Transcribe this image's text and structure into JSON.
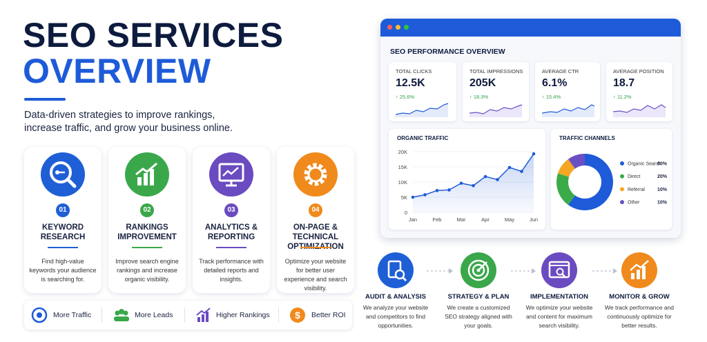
{
  "header": {
    "title_line1": "SEO SERVICES",
    "title_line2": "OVERVIEW",
    "subtitle": "Data-driven strategies to improve rankings, increase traffic, and grow your business online."
  },
  "services": [
    {
      "number": "01",
      "title": "KEYWORD RESEARCH",
      "description": "Find high-value keywords your audience is searching for."
    },
    {
      "number": "02",
      "title": "RANKINGS IMPROVEMENT",
      "description": "Improve search engine rankings and increase organic visibility."
    },
    {
      "number": "03",
      "title": "ANALYTICS & REPORTING",
      "description": "Track performance with detailed reports and insights."
    },
    {
      "number": "04",
      "title": "ON-PAGE & TECHNICAL OPTIMIZATION",
      "description": "Optimize your website for better user experience and search visibility."
    }
  ],
  "benefits": [
    "More Traffic",
    "More Leads",
    "Higher Rankings",
    "Better ROI"
  ],
  "dashboard": {
    "title": "SEO PERFORMANCE OVERVIEW",
    "kpis": [
      {
        "label": "TOTAL CLICKS",
        "value": "12.5K",
        "change": "25.6%"
      },
      {
        "label": "TOTAL IMPRESSIONS",
        "value": "205K",
        "change": "18.3%"
      },
      {
        "label": "AVERAGE CTR",
        "value": "6.1%",
        "change": "15.4%"
      },
      {
        "label": "AVERAGE POSITION",
        "value": "18.7",
        "change": "11.2%"
      }
    ]
  },
  "chart_data": [
    {
      "type": "line",
      "title": "ORGANIC TRAFFIC",
      "categories": [
        "Jan",
        null,
        "Feb",
        null,
        "Mar",
        null,
        "Apr",
        null,
        "May",
        null,
        "Jun"
      ],
      "values": [
        5000,
        5800,
        7200,
        7400,
        9600,
        8800,
        11800,
        10800,
        14800,
        13500,
        19300
      ],
      "color": "#1e5bd8",
      "ylim": [
        0,
        20000
      ],
      "yticks": [
        0,
        {
          "value": 5000,
          "label": "5K"
        },
        {
          "value": 10000,
          "label": "10K"
        },
        {
          "value": 15000,
          "label": "15K"
        },
        {
          "value": 20000,
          "label": "20K"
        }
      ]
    },
    {
      "type": "pie",
      "title": "TRAFFIC CHANNELS",
      "categories": [
        "Organic Search",
        "Direct",
        "Referral",
        "Other"
      ],
      "values": [
        60,
        20,
        10,
        10
      ],
      "value_labels": [
        "60%",
        "20%",
        "10%",
        "10%"
      ],
      "colors": [
        "#1e5bd8",
        "#3bab4a",
        "#f5a623",
        "#6a4fc4"
      ]
    }
  ],
  "process": [
    {
      "title": "AUDIT & ANALYSIS",
      "description": "We analyze your website and competitors to find opportunities."
    },
    {
      "title": "STRATEGY & PLAN",
      "description": "We create a customized SEO strategy aligned with your goals."
    },
    {
      "title": "IMPLEMENTATION",
      "description": "We optimize your website and content for maximum search visibility."
    },
    {
      "title": "MONITOR & GROW",
      "description": "We track performance and continuously optimize for better results."
    }
  ]
}
